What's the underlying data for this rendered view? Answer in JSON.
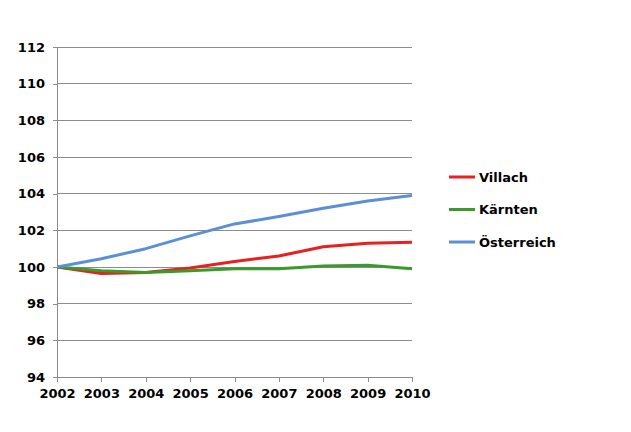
{
  "chart_data": {
    "type": "line",
    "x": [
      2002,
      2003,
      2004,
      2005,
      2006,
      2007,
      2008,
      2009,
      2010
    ],
    "series": [
      {
        "name": "Villach",
        "color": "#e8201f",
        "values": [
          100,
          99.65,
          99.7,
          99.95,
          100.3,
          100.6,
          101.1,
          101.3,
          101.35
        ]
      },
      {
        "name": "Kärnten",
        "color": "#3a9a2a",
        "values": [
          100,
          99.8,
          99.7,
          99.8,
          99.9,
          99.9,
          100.05,
          100.1,
          99.9
        ]
      },
      {
        "name": "Österreich",
        "color": "#5b8fd6",
        "values": [
          100,
          100.45,
          101,
          101.7,
          102.35,
          102.75,
          103.2,
          103.6,
          103.9
        ]
      }
    ],
    "xlim": [
      2002,
      2010
    ],
    "xticks": [
      2002,
      2003,
      2004,
      2005,
      2006,
      2007,
      2008,
      2009,
      2010
    ],
    "ylim": [
      94,
      112
    ],
    "yticks": [
      94,
      96,
      98,
      100,
      102,
      104,
      106,
      108,
      110,
      112
    ],
    "grid": true,
    "legend": "right"
  }
}
